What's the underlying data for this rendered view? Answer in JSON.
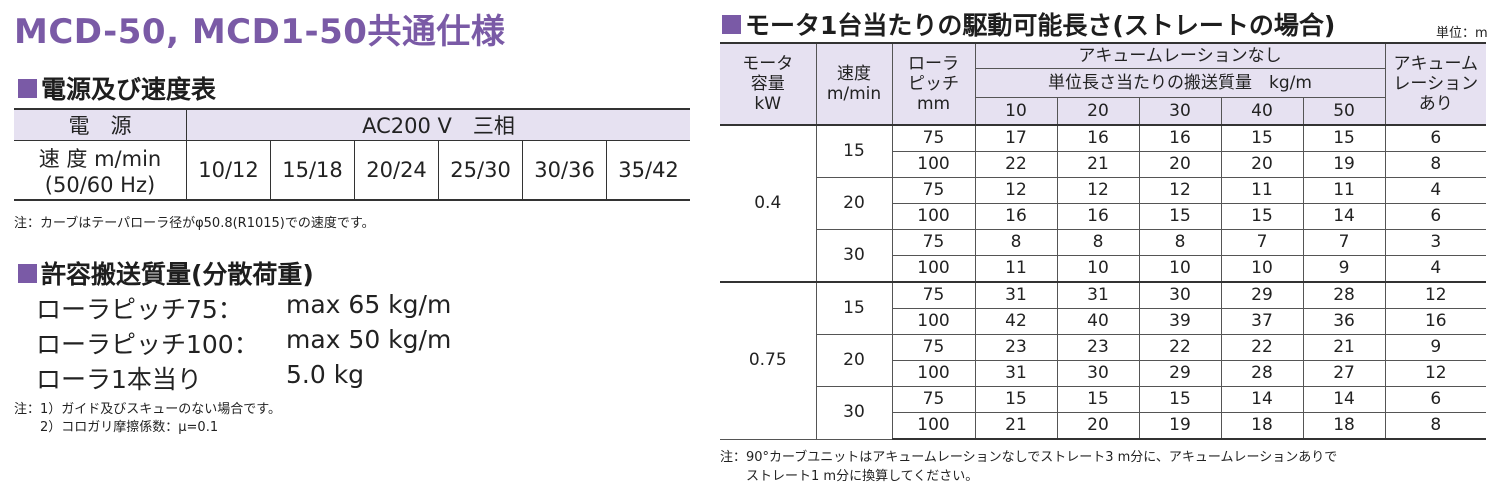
{
  "title": "MCD-50, MCD1-50共通仕様",
  "power_section": {
    "heading": "電源及び速度表",
    "power_label": "電　源",
    "power_value": "AC200 V　三相",
    "speed_label_1": "速 度 m/min",
    "speed_label_2": "(50/60 Hz)",
    "speeds": [
      "10/12",
      "15/18",
      "20/24",
      "25/30",
      "30/36",
      "35/42"
    ],
    "note": "注：カーブはテーパローラ径がφ50.8(R1015)での速度です。"
  },
  "capacity_section": {
    "heading": "許容搬送質量(分散荷重)",
    "rows": [
      {
        "label": "ローラピッチ75：",
        "value": "max 65 kg/m"
      },
      {
        "label": "ローラピッチ100：",
        "value": "max 50 kg/m"
      },
      {
        "label": "ローラ1本当り",
        "value": "5.0 kg"
      }
    ],
    "note_1": "注：1）ガイド及びスキューのない場合です。",
    "note_2": "　　2）コロガリ摩擦係数：μ=0.1"
  },
  "drive_section": {
    "heading": "モータ1台当たりの駆動可能長さ(ストレートの場合)",
    "unit": "単位：m",
    "col_motor": [
      "モータ",
      "容量",
      "kW"
    ],
    "col_speed": [
      "速度",
      "m/min"
    ],
    "col_pitch": [
      "ローラ",
      "ピッチ",
      "mm"
    ],
    "col_noaccum": "アキュームレーションなし",
    "col_mass": "単位長さ当たりの搬送質量　kg/m",
    "mass_cols": [
      "10",
      "20",
      "30",
      "40",
      "50"
    ],
    "col_accum": [
      "アキューム",
      "レーション",
      "あり"
    ],
    "groups": [
      {
        "motor": "0.4",
        "speeds": [
          {
            "speed": "15",
            "rows": [
              {
                "pitch": "75",
                "vals": [
                  "17",
                  "16",
                  "16",
                  "15",
                  "15"
                ],
                "accum": "6"
              },
              {
                "pitch": "100",
                "vals": [
                  "22",
                  "21",
                  "20",
                  "20",
                  "19"
                ],
                "accum": "8"
              }
            ]
          },
          {
            "speed": "20",
            "rows": [
              {
                "pitch": "75",
                "vals": [
                  "12",
                  "12",
                  "12",
                  "11",
                  "11"
                ],
                "accum": "4"
              },
              {
                "pitch": "100",
                "vals": [
                  "16",
                  "16",
                  "15",
                  "15",
                  "14"
                ],
                "accum": "6"
              }
            ]
          },
          {
            "speed": "30",
            "rows": [
              {
                "pitch": "75",
                "vals": [
                  "8",
                  "8",
                  "8",
                  "7",
                  "7"
                ],
                "accum": "3"
              },
              {
                "pitch": "100",
                "vals": [
                  "11",
                  "10",
                  "10",
                  "10",
                  "9"
                ],
                "accum": "4"
              }
            ]
          }
        ]
      },
      {
        "motor": "0.75",
        "speeds": [
          {
            "speed": "15",
            "rows": [
              {
                "pitch": "75",
                "vals": [
                  "31",
                  "31",
                  "30",
                  "29",
                  "28"
                ],
                "accum": "12"
              },
              {
                "pitch": "100",
                "vals": [
                  "42",
                  "40",
                  "39",
                  "37",
                  "36"
                ],
                "accum": "16"
              }
            ]
          },
          {
            "speed": "20",
            "rows": [
              {
                "pitch": "75",
                "vals": [
                  "23",
                  "23",
                  "22",
                  "22",
                  "21"
                ],
                "accum": "9"
              },
              {
                "pitch": "100",
                "vals": [
                  "31",
                  "30",
                  "29",
                  "28",
                  "27"
                ],
                "accum": "12"
              }
            ]
          },
          {
            "speed": "30",
            "rows": [
              {
                "pitch": "75",
                "vals": [
                  "15",
                  "15",
                  "15",
                  "14",
                  "14"
                ],
                "accum": "6"
              },
              {
                "pitch": "100",
                "vals": [
                  "21",
                  "20",
                  "19",
                  "18",
                  "18"
                ],
                "accum": "8"
              }
            ]
          }
        ]
      }
    ],
    "note_1": "注：90°カーブユニットはアキュームレーションなしでストレート3 m分に、アキュームレーションありで",
    "note_2": "　　ストレート1 m分に換算してください。"
  }
}
